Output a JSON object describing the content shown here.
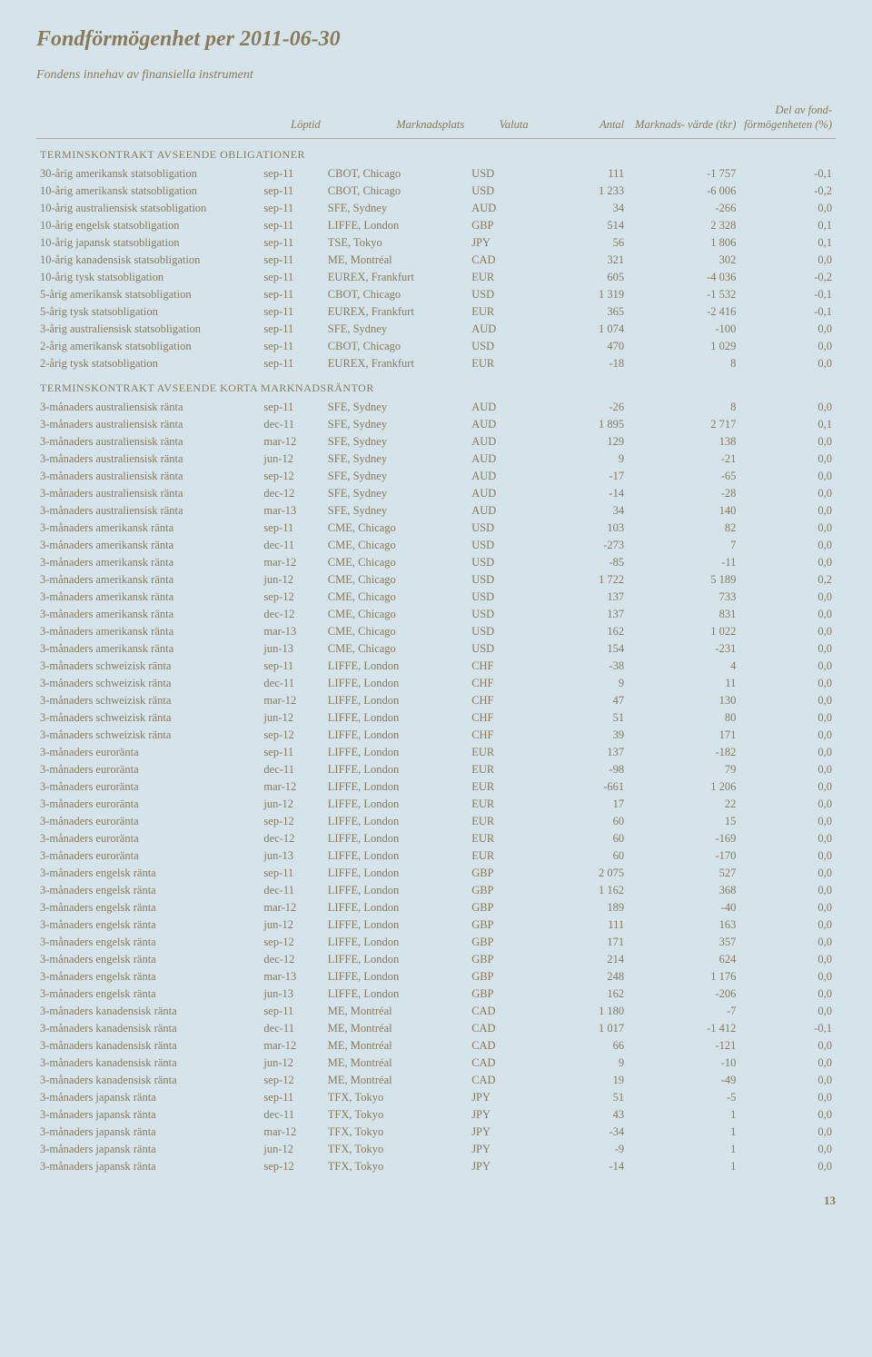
{
  "title": "Fondförmögenhet per 2011-06-30",
  "subtitle": "Fondens innehav av finansiella instrument",
  "page_number": "13",
  "columns": {
    "c0": "",
    "c1": "Löptid",
    "c2": "Marknadsplats",
    "c3": "Valuta",
    "c4": "Antal",
    "c5": "Marknads-\nvärde (tkr)",
    "c6": "Del av fond-\nförmögenheten\n(%)"
  },
  "sections": [
    {
      "header": "terminskontrakt avseende obligationer",
      "rows": [
        [
          "30-årig amerikansk statsobligation",
          "sep-11",
          "CBOT, Chicago",
          "USD",
          "111",
          "-1 757",
          "-0,1"
        ],
        [
          "10-årig amerikansk statsobligation",
          "sep-11",
          "CBOT, Chicago",
          "USD",
          "1 233",
          "-6 006",
          "-0,2"
        ],
        [
          "10-årig australiensisk statsobligation",
          "sep-11",
          "SFE, Sydney",
          "AUD",
          "34",
          "-266",
          "0,0"
        ],
        [
          "10-årig engelsk statsobligation",
          "sep-11",
          "LIFFE, London",
          "GBP",
          "514",
          "2 328",
          "0,1"
        ],
        [
          "10-årig japansk statsobligation",
          "sep-11",
          "TSE, Tokyo",
          "JPY",
          "56",
          "1 806",
          "0,1"
        ],
        [
          "10-årig kanadensisk statsobligation",
          "sep-11",
          "ME, Montréal",
          "CAD",
          "321",
          "302",
          "0,0"
        ],
        [
          "10-årig tysk statsobligation",
          "sep-11",
          "EUREX, Frankfurt",
          "EUR",
          "605",
          "-4 036",
          "-0,2"
        ],
        [
          "5-årig amerikansk statsobligation",
          "sep-11",
          "CBOT, Chicago",
          "USD",
          "1 319",
          "-1 532",
          "-0,1"
        ],
        [
          "5-årig tysk statsobligation",
          "sep-11",
          "EUREX, Frankfurt",
          "EUR",
          "365",
          "-2 416",
          "-0,1"
        ],
        [
          "3-årig australiensisk statsobligation",
          "sep-11",
          "SFE, Sydney",
          "AUD",
          "1 074",
          "-100",
          "0,0"
        ],
        [
          "2-årig amerikansk statsobligation",
          "sep-11",
          "CBOT, Chicago",
          "USD",
          "470",
          "1 029",
          "0,0"
        ],
        [
          "2-årig tysk statsobligation",
          "sep-11",
          "EUREX, Frankfurt",
          "EUR",
          "-18",
          "8",
          "0,0"
        ]
      ]
    },
    {
      "header": "terminskontrakt avseende korta marknadsräntor",
      "rows": [
        [
          "3-månaders australiensisk ränta",
          "sep-11",
          "SFE, Sydney",
          "AUD",
          "-26",
          "8",
          "0,0"
        ],
        [
          "3-månaders australiensisk ränta",
          "dec-11",
          "SFE, Sydney",
          "AUD",
          "1 895",
          "2 717",
          "0,1"
        ],
        [
          "3-månaders australiensisk ränta",
          "mar-12",
          "SFE, Sydney",
          "AUD",
          "129",
          "138",
          "0,0"
        ],
        [
          "3-månaders australiensisk ränta",
          "jun-12",
          "SFE, Sydney",
          "AUD",
          "9",
          "-21",
          "0,0"
        ],
        [
          "3-månaders australiensisk ränta",
          "sep-12",
          "SFE, Sydney",
          "AUD",
          "-17",
          "-65",
          "0,0"
        ],
        [
          "3-månaders australiensisk ränta",
          "dec-12",
          "SFE, Sydney",
          "AUD",
          "-14",
          "-28",
          "0,0"
        ],
        [
          "3-månaders australiensisk ränta",
          "mar-13",
          "SFE, Sydney",
          "AUD",
          "34",
          "140",
          "0,0"
        ],
        [
          "3-månaders amerikansk ränta",
          "sep-11",
          "CME, Chicago",
          "USD",
          "103",
          "82",
          "0,0"
        ],
        [
          "3-månaders amerikansk ränta",
          "dec-11",
          "CME, Chicago",
          "USD",
          "-273",
          "7",
          "0,0"
        ],
        [
          "3-månaders amerikansk ränta",
          "mar-12",
          "CME, Chicago",
          "USD",
          "-85",
          "-11",
          "0,0"
        ],
        [
          "3-månaders amerikansk ränta",
          "jun-12",
          "CME, Chicago",
          "USD",
          "1 722",
          "5 189",
          "0,2"
        ],
        [
          "3-månaders amerikansk ränta",
          "sep-12",
          "CME, Chicago",
          "USD",
          "137",
          "733",
          "0,0"
        ],
        [
          "3-månaders amerikansk ränta",
          "dec-12",
          "CME, Chicago",
          "USD",
          "137",
          "831",
          "0,0"
        ],
        [
          "3-månaders amerikansk ränta",
          "mar-13",
          "CME, Chicago",
          "USD",
          "162",
          "1 022",
          "0,0"
        ],
        [
          "3-månaders amerikansk ränta",
          "jun-13",
          "CME, Chicago",
          "USD",
          "154",
          "-231",
          "0,0"
        ],
        [
          "3-månaders schweizisk ränta",
          "sep-11",
          "LIFFE, London",
          "CHF",
          "-38",
          "4",
          "0,0"
        ],
        [
          "3-månaders schweizisk ränta",
          "dec-11",
          "LIFFE, London",
          "CHF",
          "9",
          "11",
          "0,0"
        ],
        [
          "3-månaders schweizisk ränta",
          "mar-12",
          "LIFFE, London",
          "CHF",
          "47",
          "130",
          "0,0"
        ],
        [
          "3-månaders schweizisk ränta",
          "jun-12",
          "LIFFE, London",
          "CHF",
          "51",
          "80",
          "0,0"
        ],
        [
          "3-månaders schweizisk ränta",
          "sep-12",
          "LIFFE, London",
          "CHF",
          "39",
          "171",
          "0,0"
        ],
        [
          "3-månaders euroränta",
          "sep-11",
          "LIFFE, London",
          "EUR",
          "137",
          "-182",
          "0,0"
        ],
        [
          "3-månaders euroränta",
          "dec-11",
          "LIFFE, London",
          "EUR",
          "-98",
          "79",
          "0,0"
        ],
        [
          "3-månaders euroränta",
          "mar-12",
          "LIFFE, London",
          "EUR",
          "-661",
          "1 206",
          "0,0"
        ],
        [
          "3-månaders euroränta",
          "jun-12",
          "LIFFE, London",
          "EUR",
          "17",
          "22",
          "0,0"
        ],
        [
          "3-månaders euroränta",
          "sep-12",
          "LIFFE, London",
          "EUR",
          "60",
          "15",
          "0,0"
        ],
        [
          "3-månaders euroränta",
          "dec-12",
          "LIFFE, London",
          "EUR",
          "60",
          "-169",
          "0,0"
        ],
        [
          "3-månaders euroränta",
          "jun-13",
          "LIFFE, London",
          "EUR",
          "60",
          "-170",
          "0,0"
        ],
        [
          "3-månaders engelsk ränta",
          "sep-11",
          "LIFFE, London",
          "GBP",
          "2 075",
          "527",
          "0,0"
        ],
        [
          "3-månaders engelsk ränta",
          "dec-11",
          "LIFFE, London",
          "GBP",
          "1 162",
          "368",
          "0,0"
        ],
        [
          "3-månaders engelsk ränta",
          "mar-12",
          "LIFFE, London",
          "GBP",
          "189",
          "-40",
          "0,0"
        ],
        [
          "3-månaders engelsk ränta",
          "jun-12",
          "LIFFE, London",
          "GBP",
          "111",
          "163",
          "0,0"
        ],
        [
          "3-månaders engelsk ränta",
          "sep-12",
          "LIFFE, London",
          "GBP",
          "171",
          "357",
          "0,0"
        ],
        [
          "3-månaders engelsk ränta",
          "dec-12",
          "LIFFE, London",
          "GBP",
          "214",
          "624",
          "0,0"
        ],
        [
          "3-månaders engelsk ränta",
          "mar-13",
          "LIFFE, London",
          "GBP",
          "248",
          "1 176",
          "0,0"
        ],
        [
          "3-månaders engelsk ränta",
          "jun-13",
          "LIFFE, London",
          "GBP",
          "162",
          "-206",
          "0,0"
        ],
        [
          "3-månaders kanadensisk ränta",
          "sep-11",
          "ME, Montréal",
          "CAD",
          "1 180",
          "-7",
          "0,0"
        ],
        [
          "3-månaders kanadensisk ränta",
          "dec-11",
          "ME, Montréal",
          "CAD",
          "1 017",
          "-1 412",
          "-0,1"
        ],
        [
          "3-månaders kanadensisk ränta",
          "mar-12",
          "ME, Montréal",
          "CAD",
          "66",
          "-121",
          "0,0"
        ],
        [
          "3-månaders kanadensisk ränta",
          "jun-12",
          "ME, Montréal",
          "CAD",
          "9",
          "-10",
          "0,0"
        ],
        [
          "3-månaders kanadensisk ränta",
          "sep-12",
          "ME, Montréal",
          "CAD",
          "19",
          "-49",
          "0,0"
        ],
        [
          "3-månaders japansk ränta",
          "sep-11",
          "TFX, Tokyo",
          "JPY",
          "51",
          "-5",
          "0,0"
        ],
        [
          "3-månaders japansk ränta",
          "dec-11",
          "TFX, Tokyo",
          "JPY",
          "43",
          "1",
          "0,0"
        ],
        [
          "3-månaders japansk ränta",
          "mar-12",
          "TFX, Tokyo",
          "JPY",
          "-34",
          "1",
          "0,0"
        ],
        [
          "3-månaders japansk ränta",
          "jun-12",
          "TFX, Tokyo",
          "JPY",
          "-9",
          "1",
          "0,0"
        ],
        [
          "3-månaders japansk ränta",
          "sep-12",
          "TFX, Tokyo",
          "JPY",
          "-14",
          "1",
          "0,0"
        ]
      ]
    }
  ]
}
